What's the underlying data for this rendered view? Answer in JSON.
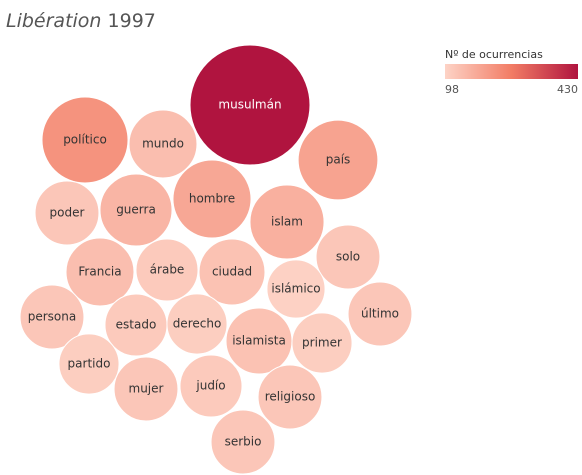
{
  "chart_data": {
    "type": "packed_bubble",
    "title": "Libération",
    "title_suffix": "1997",
    "categories": [
      "musulmán",
      "político",
      "país",
      "hombre",
      "guerra",
      "islam",
      "mundo",
      "poder",
      "Francia",
      "árabe",
      "ciudad",
      "solo",
      "islámico",
      "persona",
      "estado",
      "derecho",
      "islamista",
      "primer",
      "último",
      "partido",
      "mujer",
      "judío",
      "religioso",
      "serbio"
    ],
    "values": [
      430,
      221,
      190,
      182,
      155,
      164,
      138,
      122,
      138,
      115,
      130,
      122,
      101,
      122,
      115,
      108,
      130,
      108,
      122,
      108,
      122,
      115,
      122,
      122
    ],
    "legend": {
      "title": "Nº de ocurrencias",
      "min": 98,
      "max": 430,
      "colors": [
        "#fdd3c6",
        "#f27c65",
        "#b0143f"
      ]
    }
  }
}
